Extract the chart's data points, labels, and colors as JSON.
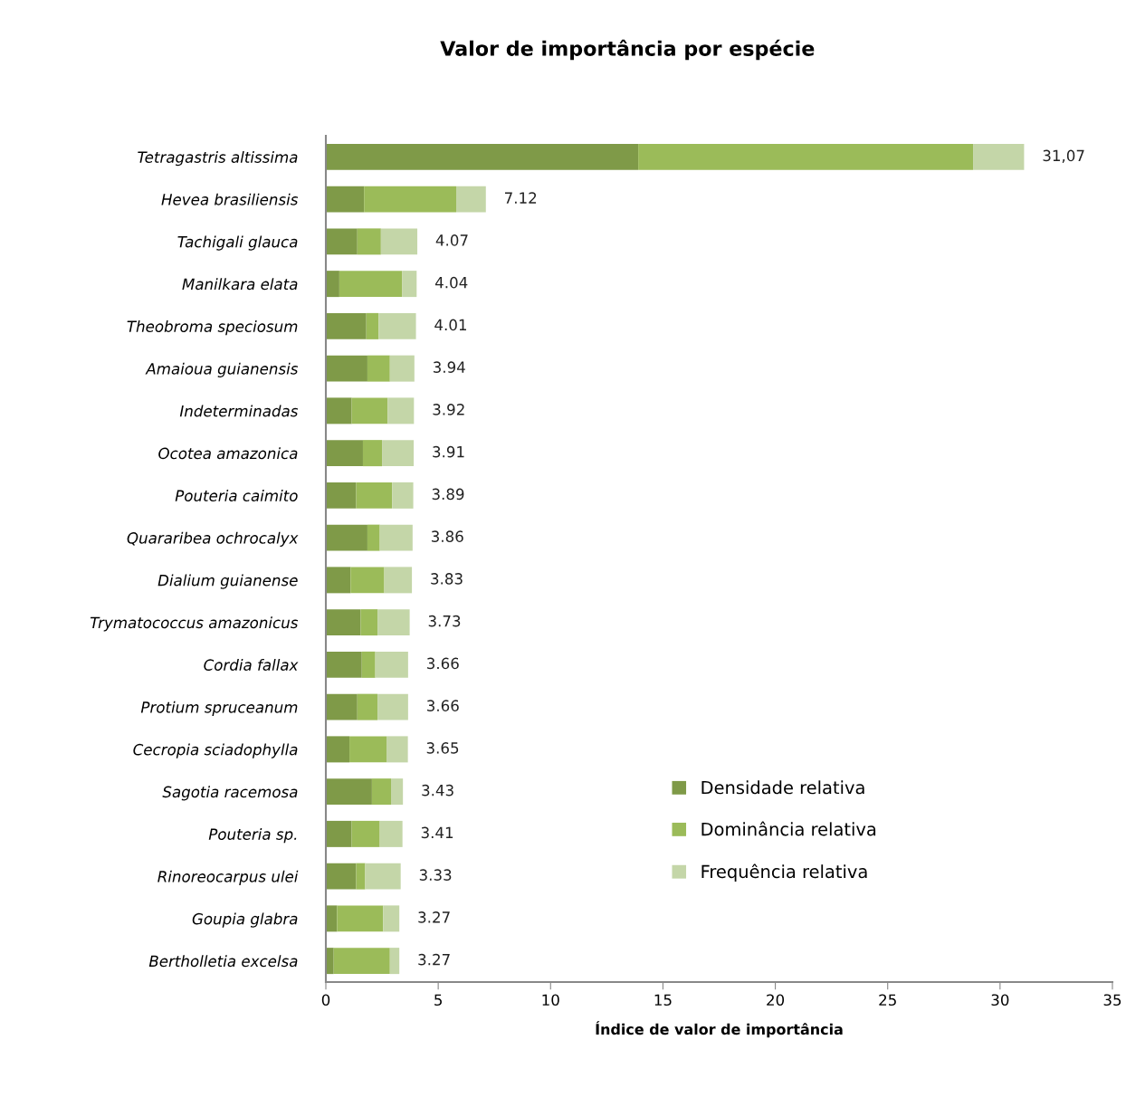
{
  "chart_data": {
    "type": "bar",
    "orientation": "horizontal",
    "stacked": true,
    "title": "Valor de importância por espécie",
    "xlabel": "Índice de valor de importância",
    "categories": [
      "Tetragastris altissima",
      "Hevea brasiliensis",
      "Tachigali glauca",
      "Manilkara elata",
      "Theobroma speciosum",
      "Amaioua guianensis",
      "Indeterminadas",
      "Ocotea amazonica",
      "Pouteria caimito",
      "Quararibea ochrocalyx",
      "Dialium guianense",
      "Trymatococcus amazonicus",
      "Cordia fallax",
      "Protium spruceanum",
      "Cecropia sciadophylla",
      "Sagotia racemosa",
      "Pouteria sp.",
      "Rinoreocarpus ulei",
      "Goupia glabra",
      "Bertholletia excelsa"
    ],
    "series": [
      {
        "name": "Densidade relativa",
        "color": "#7f9a48",
        "values": [
          13.9,
          1.7,
          1.4,
          0.6,
          1.8,
          1.85,
          1.15,
          1.65,
          1.35,
          1.85,
          1.1,
          1.55,
          1.6,
          1.4,
          1.05,
          2.05,
          1.15,
          1.35,
          0.5,
          0.35
        ]
      },
      {
        "name": "Dominância relativa",
        "color": "#9bbb59",
        "values": [
          14.9,
          4.1,
          1.05,
          2.8,
          0.55,
          1.0,
          1.6,
          0.85,
          1.6,
          0.55,
          1.5,
          0.75,
          0.6,
          0.9,
          1.65,
          0.85,
          1.25,
          0.4,
          2.05,
          2.5
        ]
      },
      {
        "name": "Frequência relativa",
        "color": "#c4d6a8",
        "values": [
          2.27,
          1.32,
          1.62,
          0.64,
          1.66,
          1.09,
          1.17,
          1.41,
          0.94,
          1.46,
          1.23,
          1.43,
          1.46,
          1.36,
          0.95,
          0.53,
          1.01,
          1.58,
          0.72,
          0.42
        ]
      }
    ],
    "totals": [
      "31,07",
      "7.12",
      "4.07",
      "4.04",
      "4.01",
      "3.94",
      "3.92",
      "3.91",
      "3.89",
      "3.86",
      "3.83",
      "3.73",
      "3.66",
      "3.66",
      "3.65",
      "3.43",
      "3.41",
      "3.33",
      "3.27",
      "3.27"
    ],
    "xlim": [
      0,
      35
    ],
    "xticks": [
      0,
      5,
      10,
      15,
      20,
      25,
      30,
      35
    ],
    "grid": false,
    "legend": "right"
  }
}
